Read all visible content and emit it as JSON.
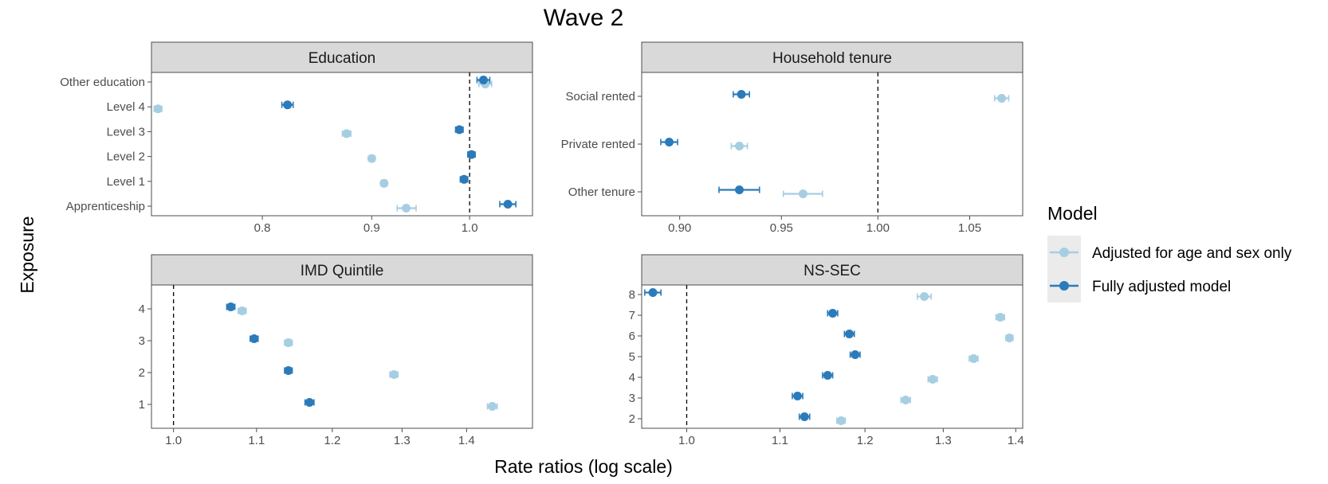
{
  "title": "Wave 2",
  "xlabel": "Rate ratios (log scale)",
  "ylabel": "Exposure",
  "legend": {
    "title": "Model",
    "items": [
      {
        "label": "Adjusted for age and sex only",
        "color": "#a6cee3"
      },
      {
        "label": "Fully adjusted model",
        "color": "#2b7bba"
      }
    ]
  },
  "chart_data": [
    {
      "type": "scatter",
      "panel": "Education",
      "x_scale": "log",
      "xlim": [
        0.71,
        1.07
      ],
      "x_ticks": [
        0.8,
        0.9,
        1.0
      ],
      "x_tick_labels": [
        "0.8",
        "0.9",
        "1.0"
      ],
      "reference_line": 1.0,
      "categories": [
        "Other education",
        "Level 4",
        "Level 3",
        "Level 2",
        "Level 1",
        "Apprenticeship"
      ],
      "series": [
        {
          "name": "Adjusted for age and sex only",
          "estimate": [
            1.017,
            0.715,
            0.876,
            0.9,
            0.912,
            0.934
          ],
          "lower": [
            1.01,
            0.712,
            0.872,
            0.897,
            0.909,
            0.925
          ],
          "upper": [
            1.024,
            0.718,
            0.88,
            0.903,
            0.915,
            0.944
          ]
        },
        {
          "name": "Fully adjusted model",
          "estimate": [
            1.015,
            0.822,
            0.989,
            1.002,
            0.994,
            1.042
          ],
          "lower": [
            1.008,
            0.817,
            0.985,
            0.998,
            0.99,
            1.033
          ],
          "upper": [
            1.022,
            0.827,
            0.993,
            1.006,
            0.998,
            1.051
          ]
        }
      ]
    },
    {
      "type": "scatter",
      "panel": "Household tenure",
      "x_scale": "log",
      "xlim": [
        0.882,
        1.08
      ],
      "x_ticks": [
        0.9,
        0.95,
        1.0,
        1.05
      ],
      "x_tick_labels": [
        "0.90",
        "0.95",
        "1.00",
        "1.05"
      ],
      "reference_line": 1.0,
      "categories": [
        "Social rented",
        "Private rented",
        "Other tenure"
      ],
      "series": [
        {
          "name": "Adjusted for age and sex only",
          "estimate": [
            1.068,
            0.929,
            0.961
          ],
          "lower": [
            1.064,
            0.925,
            0.951
          ],
          "upper": [
            1.072,
            0.933,
            0.971
          ]
        },
        {
          "name": "Fully adjusted model",
          "estimate": [
            0.93,
            0.895,
            0.929
          ],
          "lower": [
            0.926,
            0.891,
            0.919
          ],
          "upper": [
            0.934,
            0.899,
            0.939
          ]
        }
      ]
    },
    {
      "type": "scatter",
      "panel": "IMD Quintile",
      "x_scale": "log",
      "xlim": [
        0.975,
        1.51
      ],
      "x_ticks": [
        1.0,
        1.1,
        1.2,
        1.3,
        1.4
      ],
      "x_tick_labels": [
        "1.0",
        "1.1",
        "1.2",
        "1.3",
        "1.4"
      ],
      "reference_line": 1.0,
      "categories": [
        "4",
        "3",
        "2",
        "1"
      ],
      "series": [
        {
          "name": "Adjusted for age and sex only",
          "estimate": [
            1.082,
            1.141,
            1.288,
            1.442
          ],
          "lower": [
            1.077,
            1.136,
            1.282,
            1.434
          ],
          "upper": [
            1.087,
            1.146,
            1.294,
            1.45
          ]
        },
        {
          "name": "Fully adjusted model",
          "estimate": [
            1.068,
            1.097,
            1.141,
            1.169
          ],
          "lower": [
            1.063,
            1.092,
            1.136,
            1.163
          ],
          "upper": [
            1.073,
            1.102,
            1.146,
            1.175
          ]
        }
      ]
    },
    {
      "type": "scatter",
      "panel": "NS-SEC",
      "x_scale": "log",
      "xlim": [
        0.955,
        1.41
      ],
      "x_ticks": [
        1.0,
        1.1,
        1.2,
        1.3,
        1.4
      ],
      "x_tick_labels": [
        "1.0",
        "1.1",
        "1.2",
        "1.3",
        "1.4"
      ],
      "reference_line": 1.0,
      "categories": [
        "8",
        "7",
        "6",
        "5",
        "4",
        "3",
        "2"
      ],
      "series": [
        {
          "name": "Adjusted for age and sex only",
          "estimate": [
            1.275,
            1.378,
            1.391,
            1.341,
            1.286,
            1.251,
            1.171
          ],
          "lower": [
            1.266,
            1.372,
            1.386,
            1.335,
            1.28,
            1.245,
            1.166
          ],
          "upper": [
            1.284,
            1.384,
            1.396,
            1.347,
            1.292,
            1.257,
            1.176
          ]
        },
        {
          "name": "Fully adjusted model",
          "estimate": [
            0.966,
            1.161,
            1.181,
            1.188,
            1.155,
            1.12,
            1.128
          ],
          "lower": [
            0.958,
            1.155,
            1.175,
            1.182,
            1.149,
            1.114,
            1.122
          ],
          "upper": [
            0.974,
            1.167,
            1.187,
            1.194,
            1.161,
            1.126,
            1.134
          ]
        }
      ]
    }
  ]
}
